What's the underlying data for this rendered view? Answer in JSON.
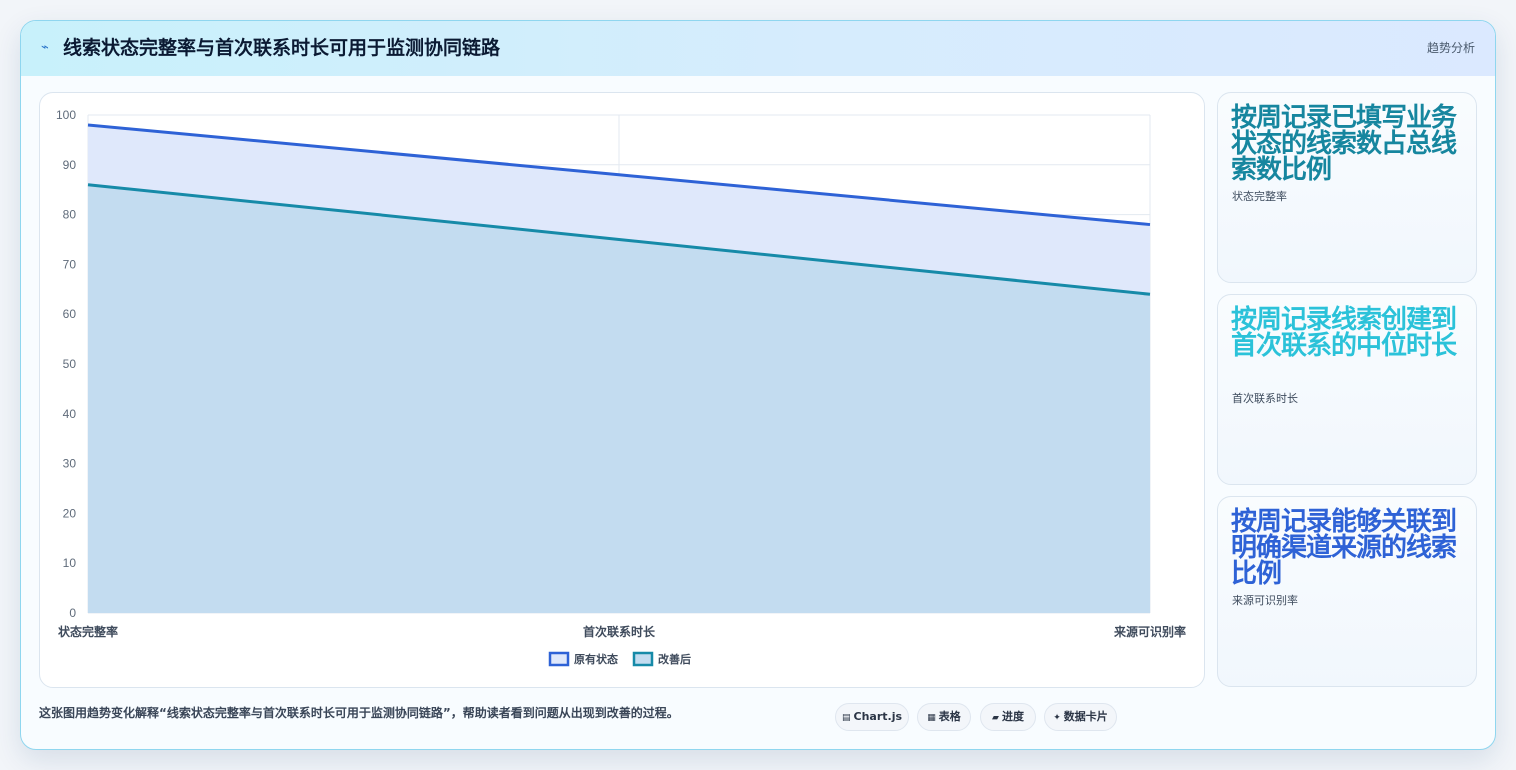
{
  "header": {
    "icon": "trend-icon",
    "title": "线索状态完整率与首次联系时长可用于监测协同链路",
    "tag": "趋势分析"
  },
  "chart_data": {
    "type": "area",
    "categories": [
      "状态完整率",
      "首次联系时长",
      "来源可识别率"
    ],
    "ylim": [
      0,
      100
    ],
    "yticks": [
      0,
      10,
      20,
      30,
      40,
      50,
      60,
      70,
      80,
      90,
      100
    ],
    "grid": true,
    "legend_position": "bottom",
    "series": [
      {
        "name": "原有状态",
        "values": [
          98,
          88,
          78
        ],
        "color": "#2e62d6",
        "fill": "#dfe8fb"
      },
      {
        "name": "改善后",
        "values": [
          86,
          75,
          64
        ],
        "color": "#168aa8",
        "fill": "#c3dcf0"
      }
    ]
  },
  "side_cards": [
    {
      "title": "按周记录已填写业务状态的线索数占总线索数比例",
      "subtitle": "状态完整率",
      "color": "#16869f"
    },
    {
      "title": "按周记录线索创建到首次联系的中位时长",
      "subtitle": "首次联系时长",
      "color": "#2bc2d9"
    },
    {
      "title": "按周记录能够关联到明确渠道来源的线索比例",
      "subtitle": "来源可识别率",
      "color": "#2e62d6"
    }
  ],
  "footer": {
    "description": "这张图用趋势变化解释“线索状态完整率与首次联系时长可用于监测协同链路”，帮助读者看到问题从出现到改善的过程。",
    "chips": [
      {
        "icon": "chart-icon",
        "glyph": "▤",
        "label": "Chart.js"
      },
      {
        "icon": "table-icon",
        "glyph": "▦",
        "label": "表格"
      },
      {
        "icon": "progress-icon",
        "glyph": "▰",
        "label": "进度"
      },
      {
        "icon": "sparkle-icon",
        "glyph": "✦",
        "label": "数据卡片"
      }
    ]
  }
}
